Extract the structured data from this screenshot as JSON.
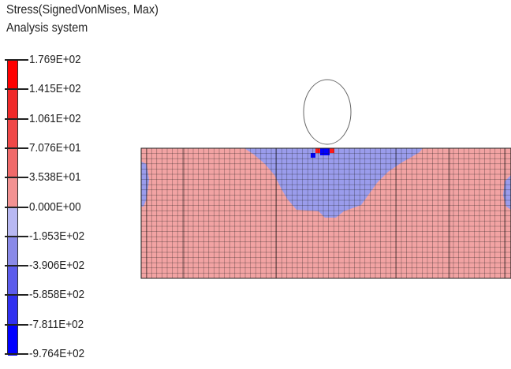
{
  "header": {
    "title": "Stress(SignedVonMises, Max)",
    "subtitle": "Analysis system"
  },
  "legend": {
    "labels": [
      "1.769E+02",
      "1.415E+02",
      "1.061E+02",
      "7.076E+01",
      "3.538E+01",
      "0.000E+00",
      "-1.953E+02",
      "-3.906E+02",
      "-5.858E+02",
      "-7.811E+02",
      "-9.764E+02"
    ],
    "colors": [
      "#ff0000",
      "#f02a2a",
      "#f04848",
      "#f06a6a",
      "#f29292",
      "#f3b4b4",
      "#b8b8f2",
      "#8a8ae8",
      "#5c5cec",
      "#3030f0",
      "#0000ff"
    ]
  },
  "model": {
    "tension_color": "#f2a3a3",
    "compression_color": "#9a9cec",
    "peak_tension_color": "#ff1a1a",
    "peak_compression_color": "#0000ff",
    "mesh_line_color": "#1a1a1a",
    "indenter_fill": "#ffffff",
    "indenter_stroke": "#666666"
  }
}
